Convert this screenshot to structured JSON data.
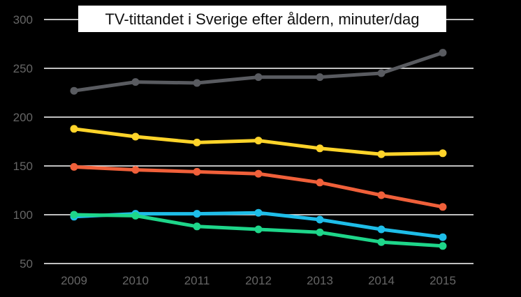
{
  "chart_data": {
    "type": "line",
    "title": "TV-tittandet i Sverige efter åldern, minuter/dag",
    "x": [
      "2009",
      "2010",
      "2011",
      "2012",
      "2013",
      "2014",
      "2015"
    ],
    "ylim": [
      50,
      300
    ],
    "yticks": [
      50,
      100,
      150,
      200,
      250,
      300
    ],
    "grid": true,
    "series": [
      {
        "color": "#595b60",
        "values": [
          227,
          236,
          235,
          241,
          241,
          245,
          266
        ]
      },
      {
        "color": "#ffd42a",
        "values": [
          188,
          180,
          174,
          176,
          168,
          162,
          163
        ]
      },
      {
        "color": "#f0603a",
        "values": [
          149,
          146,
          144,
          142,
          133,
          120,
          108
        ]
      },
      {
        "color": "#1ebde8",
        "values": [
          98,
          101,
          101,
          102,
          95,
          85,
          77
        ]
      },
      {
        "color": "#1ed68a",
        "values": [
          100,
          99,
          88,
          85,
          82,
          72,
          68
        ]
      }
    ]
  }
}
